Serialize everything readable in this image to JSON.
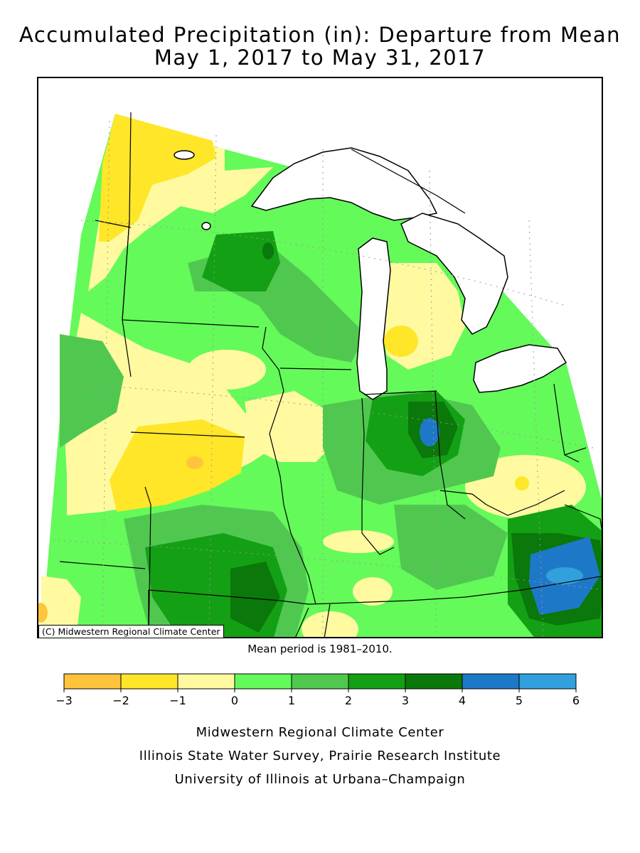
{
  "title_line1": "Accumulated Precipitation (in): Departure from Mean",
  "title_line2": "May 1, 2017 to May 31, 2017",
  "map_watermark": "(C) Midwestern Regional Climate Center",
  "mean_period_note": "Mean period is 1981–2010.",
  "legend": {
    "bins": [
      {
        "min": -3,
        "max": -2,
        "color": "#ffc43c"
      },
      {
        "min": -2,
        "max": -1,
        "color": "#ffe628"
      },
      {
        "min": -1,
        "max": 0,
        "color": "#fffaa0"
      },
      {
        "min": 0,
        "max": 1,
        "color": "#64fa5a"
      },
      {
        "min": 1,
        "max": 2,
        "color": "#50c850"
      },
      {
        "min": 2,
        "max": 3,
        "color": "#14a014"
      },
      {
        "min": 3,
        "max": 4,
        "color": "#0a780a"
      },
      {
        "min": 4,
        "max": 5,
        "color": "#1e78c8"
      },
      {
        "min": 5,
        "max": 6,
        "color": "#32a0dc"
      }
    ],
    "tick_labels": [
      "−3",
      "−2",
      "−1",
      "0",
      "1",
      "2",
      "3",
      "4",
      "5",
      "6"
    ]
  },
  "credits": [
    "Midwestern Regional Climate Center",
    "Illinois State Water Survey, Prairie Research Institute",
    "University of Illinois at Urbana–Champaign"
  ]
}
